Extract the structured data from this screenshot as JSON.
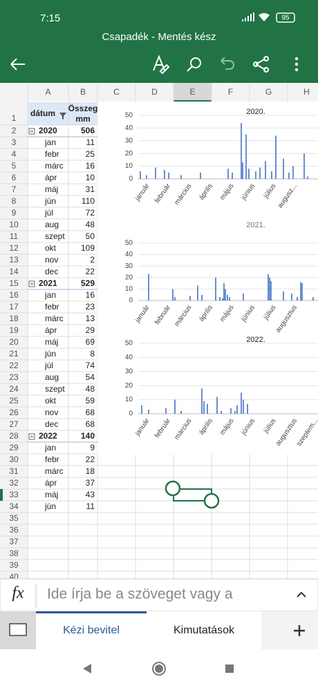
{
  "status_bar": {
    "time": "7:15",
    "battery": "95"
  },
  "title": "Csapadék - Mentés kész",
  "sheet": {
    "columns": [
      "A",
      "B",
      "C",
      "D",
      "E",
      "F",
      "G",
      "H"
    ],
    "row_numbers": [
      1,
      2,
      3,
      4,
      5,
      6,
      7,
      8,
      9,
      10,
      11,
      12,
      13,
      14,
      15,
      16,
      17,
      18,
      19,
      20,
      21,
      22,
      23,
      24,
      25,
      26,
      27,
      28,
      29,
      30,
      31,
      32,
      33,
      34,
      35,
      36,
      37,
      38,
      39,
      40
    ]
  },
  "pivot": {
    "headers": [
      "dátum",
      "Összeg",
      "mm"
    ],
    "rows": [
      {
        "label": "2020",
        "value": 506,
        "group": true
      },
      {
        "label": "jan",
        "value": 11
      },
      {
        "label": "febr",
        "value": 25
      },
      {
        "label": "márc",
        "value": 16
      },
      {
        "label": "ápr",
        "value": 10
      },
      {
        "label": "máj",
        "value": 31
      },
      {
        "label": "jún",
        "value": 110
      },
      {
        "label": "júl",
        "value": 72
      },
      {
        "label": "aug",
        "value": 48
      },
      {
        "label": "szept",
        "value": 50
      },
      {
        "label": "okt",
        "value": 109
      },
      {
        "label": "nov",
        "value": 2
      },
      {
        "label": "dec",
        "value": 22
      },
      {
        "label": "2021",
        "value": 529,
        "group": true
      },
      {
        "label": "jan",
        "value": 16
      },
      {
        "label": "febr",
        "value": 23
      },
      {
        "label": "márc",
        "value": 13
      },
      {
        "label": "ápr",
        "value": 29
      },
      {
        "label": "máj",
        "value": 69
      },
      {
        "label": "jún",
        "value": 8
      },
      {
        "label": "júl",
        "value": 74
      },
      {
        "label": "aug",
        "value": 54
      },
      {
        "label": "szept",
        "value": 48
      },
      {
        "label": "okt",
        "value": 59
      },
      {
        "label": "nov",
        "value": 68
      },
      {
        "label": "dec",
        "value": 68
      },
      {
        "label": "2022",
        "value": 140,
        "group": true
      },
      {
        "label": "jan",
        "value": 9
      },
      {
        "label": "febr",
        "value": 22
      },
      {
        "label": "márc",
        "value": 18
      },
      {
        "label": "ápr",
        "value": 37
      },
      {
        "label": "máj",
        "value": 43
      },
      {
        "label": "jún",
        "value": 11
      }
    ]
  },
  "chart_data": [
    {
      "type": "bar",
      "title": "2020.",
      "color": "#4472c4",
      "categories": [
        "január",
        "február",
        "március",
        "április",
        "május",
        "június",
        "július",
        "augusz..."
      ],
      "x": [
        3,
        12,
        25,
        38,
        44,
        62,
        90,
        130,
        136,
        149,
        151,
        156,
        160,
        170,
        176,
        184,
        193,
        199,
        210,
        218,
        224,
        240,
        245
      ],
      "values": [
        6,
        3,
        9,
        7,
        5,
        3,
        5,
        8,
        5,
        44,
        13,
        35,
        8,
        6,
        9,
        14,
        6,
        34,
        16,
        5,
        10,
        20,
        2
      ],
      "xlim": [
        0,
        260
      ],
      "ylim": [
        0,
        50
      ],
      "yticks": [
        0,
        10,
        20,
        30,
        40,
        50
      ],
      "grid": true
    },
    {
      "type": "bar",
      "title": "2021.",
      "color": "#4472c4",
      "categories": [
        "január",
        "február",
        "március",
        "április",
        "május",
        "június",
        "július",
        "augusztus"
      ],
      "x": [
        15,
        50,
        53,
        75,
        86,
        92,
        112,
        118,
        122,
        124,
        126,
        129,
        132,
        152,
        188,
        190,
        192,
        210,
        222,
        230,
        235,
        237,
        253
      ],
      "values": [
        23,
        10,
        3,
        4,
        13,
        5,
        20,
        3,
        2,
        15,
        10,
        5,
        3,
        6,
        23,
        20,
        17,
        8,
        6,
        3,
        16,
        15,
        3
      ],
      "xlim": [
        0,
        260
      ],
      "ylim": [
        0,
        50
      ],
      "yticks": [
        0,
        10,
        20,
        30,
        40,
        50
      ],
      "grid": true
    },
    {
      "type": "bar",
      "title": "2022.",
      "color": "#4472c4",
      "categories": [
        "január",
        "február",
        "március",
        "április",
        "május",
        "június",
        "július",
        "augusztus",
        "szeptem..."
      ],
      "x": [
        5,
        15,
        40,
        53,
        62,
        92,
        95,
        100,
        114,
        120,
        134,
        140,
        143,
        149,
        152,
        158
      ],
      "values": [
        6,
        3,
        4,
        10,
        2,
        18,
        9,
        7,
        12,
        2,
        4,
        2,
        6,
        15,
        10,
        7
      ],
      "xlim": [
        0,
        260
      ],
      "ylim": [
        0,
        50
      ],
      "yticks": [
        0,
        10,
        20,
        30,
        40,
        50
      ],
      "grid": true
    }
  ],
  "formula_bar": {
    "fx": "fx",
    "placeholder": "Ide írja be a szöveget vagy a"
  },
  "tabs": [
    "Kézi bevitel",
    "Kimutatások"
  ]
}
